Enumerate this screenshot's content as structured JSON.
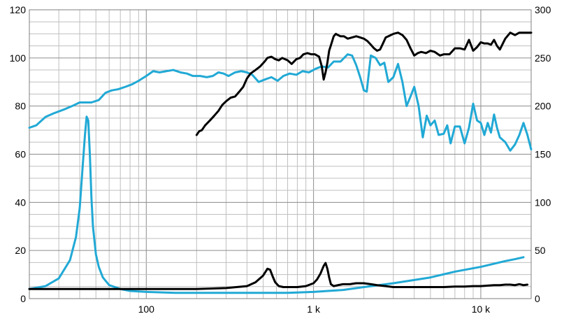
{
  "chart_data": {
    "type": "line",
    "title": "",
    "xlabel": "",
    "ylabel": "",
    "x_scale": "log",
    "xlim": [
      20,
      20000
    ],
    "ylim_left": [
      0,
      120
    ],
    "ylim_right": [
      0,
      300
    ],
    "grid": true,
    "legend": "none",
    "x_ticks": [
      {
        "value": 100,
        "label": "100"
      },
      {
        "value": 1000,
        "label": "1 k"
      },
      {
        "value": 10000,
        "label": "10 k"
      }
    ],
    "y_left_ticks": [
      0,
      20,
      40,
      60,
      80,
      100,
      120
    ],
    "y_right_ticks": [
      0,
      50,
      100,
      150,
      200,
      250,
      300
    ],
    "colors": {
      "blue": "#21a9d5",
      "black": "#000000",
      "grid_major": "#8c8c8c",
      "grid_minor": "#bfbfbf"
    },
    "series": [
      {
        "axis": "left",
        "color": "#21a9d5",
        "x": [
          20,
          22,
          25,
          28,
          32,
          36,
          40,
          43,
          47,
          52,
          57,
          62,
          68,
          75,
          82,
          90,
          100,
          110,
          120,
          132,
          145,
          160,
          175,
          190,
          210,
          230,
          250,
          270,
          290,
          310,
          340,
          370,
          400,
          430,
          470,
          510,
          560,
          610,
          660,
          720,
          790,
          860,
          940,
          1030,
          1120,
          1220,
          1320,
          1450,
          1600,
          1700,
          1800,
          1900,
          2000,
          2080,
          2200,
          2350,
          2500,
          2650,
          2800,
          3000,
          3200,
          3400,
          3600,
          3800,
          4000,
          4250,
          4500,
          4750,
          5000,
          5300,
          5600,
          6000,
          6300,
          6600,
          7000,
          7500,
          8000,
          8500,
          9000,
          9500,
          10000,
          10500,
          11000,
          11500,
          12000,
          12500,
          13000,
          13500,
          14000,
          15000,
          16000,
          17000,
          18000,
          19000,
          20000
        ],
        "y": [
          71,
          72,
          75.5,
          77,
          78.5,
          80,
          81.5,
          81.5,
          81.5,
          82.5,
          85.5,
          86.5,
          87,
          88,
          89,
          90.5,
          92.5,
          94.5,
          94,
          94.5,
          95,
          94,
          93.5,
          92.5,
          92.5,
          92,
          92.5,
          94,
          93.5,
          92.5,
          94,
          94.5,
          94,
          93,
          90,
          91,
          92,
          90.5,
          92.5,
          93.5,
          93,
          94.5,
          94,
          95.5,
          96.5,
          96,
          98.5,
          98.5,
          101.5,
          101,
          97,
          92,
          86.5,
          86,
          101,
          100,
          97,
          98,
          90,
          92,
          97.5,
          90,
          80,
          84,
          88,
          80,
          67,
          76,
          72,
          74,
          68,
          68.5,
          72,
          64.5,
          71.5,
          71.5,
          64.5,
          71,
          81,
          74,
          73,
          68,
          73,
          69,
          76.5,
          71,
          67,
          66,
          65,
          61.5,
          64,
          68,
          73,
          68,
          62
        ]
      },
      {
        "axis": "right",
        "color": "#21a9d5",
        "x": [
          20,
          25,
          30,
          35,
          38,
          40,
          41.5,
          43,
          44,
          45,
          46,
          47,
          48,
          50,
          52,
          55,
          60,
          70,
          80,
          100,
          150,
          200,
          300,
          500,
          700,
          1000,
          1500,
          2000,
          3000,
          5000,
          7000,
          10000,
          14000,
          16000,
          18000
        ],
        "y": [
          10,
          13,
          21,
          40,
          64,
          94,
          133,
          170,
          189,
          185,
          150,
          105,
          75,
          46,
          33,
          22,
          14,
          10,
          8,
          7,
          6,
          6,
          6,
          6,
          6,
          7,
          9,
          12,
          16,
          22,
          28,
          33,
          39,
          41,
          43
        ]
      },
      {
        "axis": "left",
        "color": "#000000",
        "x": [
          200,
          207,
          215,
          225,
          240,
          255,
          270,
          285,
          300,
          320,
          340,
          360,
          380,
          400,
          420,
          450,
          480,
          510,
          530,
          560,
          590,
          620,
          650,
          700,
          740,
          790,
          830,
          870,
          920,
          970,
          1020,
          1080,
          1120,
          1150,
          1180,
          1210,
          1240,
          1280,
          1320,
          1360,
          1400,
          1450,
          1520,
          1600,
          1700,
          1800,
          1900,
          2000,
          2100,
          2200,
          2300,
          2400,
          2500,
          2600,
          2700,
          2800,
          3000,
          3200,
          3400,
          3600,
          3800,
          4000,
          4200,
          4400,
          4700,
          5000,
          5300,
          5700,
          6000,
          6500,
          7000,
          7500,
          8000,
          8500,
          9000,
          9500,
          10000,
          10500,
          11000,
          11500,
          12000,
          12500,
          13000,
          14000,
          15000,
          16000,
          17000,
          18000,
          20000
        ],
        "y": [
          68,
          69.5,
          70,
          72,
          74,
          76,
          78,
          80.5,
          82,
          83.5,
          84,
          86,
          88,
          91.5,
          93.5,
          95,
          96.5,
          98.5,
          100,
          100.5,
          99.5,
          99,
          100,
          99,
          97.5,
          99.5,
          100,
          101.5,
          102,
          101.5,
          101.5,
          100.5,
          96.5,
          91,
          94,
          98,
          103,
          106,
          109,
          110,
          109.5,
          109,
          109,
          108,
          108.5,
          109,
          108.5,
          108,
          107,
          105.5,
          104,
          103,
          103.5,
          106,
          108.5,
          109,
          110,
          110.5,
          109.5,
          107.5,
          104,
          101,
          102,
          102.5,
          102,
          103,
          102.5,
          101,
          101.5,
          101.5,
          104,
          104,
          103.5,
          107.5,
          103,
          104.5,
          106.5,
          106,
          106,
          105.5,
          107.5,
          105,
          103.5,
          108,
          110.5,
          109.5,
          110.5,
          110.5,
          110.5
        ]
      },
      {
        "axis": "right",
        "color": "#000000",
        "x": [
          20,
          30,
          50,
          100,
          200,
          300,
          400,
          450,
          500,
          530,
          550,
          570,
          590,
          620,
          660,
          720,
          800,
          900,
          1000,
          1050,
          1100,
          1150,
          1180,
          1210,
          1240,
          1270,
          1320,
          1400,
          1500,
          1650,
          1800,
          2000,
          2200,
          2400,
          2700,
          3000,
          3500,
          4000,
          5000,
          6000,
          7000,
          8000,
          9000,
          10000,
          11000,
          12000,
          13000,
          14000,
          15000,
          16000,
          17000,
          18000,
          19000
        ],
        "y": [
          10,
          10,
          10,
          10,
          10,
          11,
          13,
          17,
          24,
          31,
          30,
          23,
          17,
          13,
          12,
          12,
          12,
          13,
          16,
          20,
          26,
          34,
          37,
          31,
          22,
          15,
          13,
          14,
          15,
          15,
          16,
          16,
          15,
          14,
          13,
          12,
          12,
          12,
          12,
          12,
          12.5,
          12.5,
          13,
          13,
          13.5,
          14,
          14,
          14.5,
          14.5,
          14,
          15,
          14,
          14.5
        ]
      }
    ]
  }
}
